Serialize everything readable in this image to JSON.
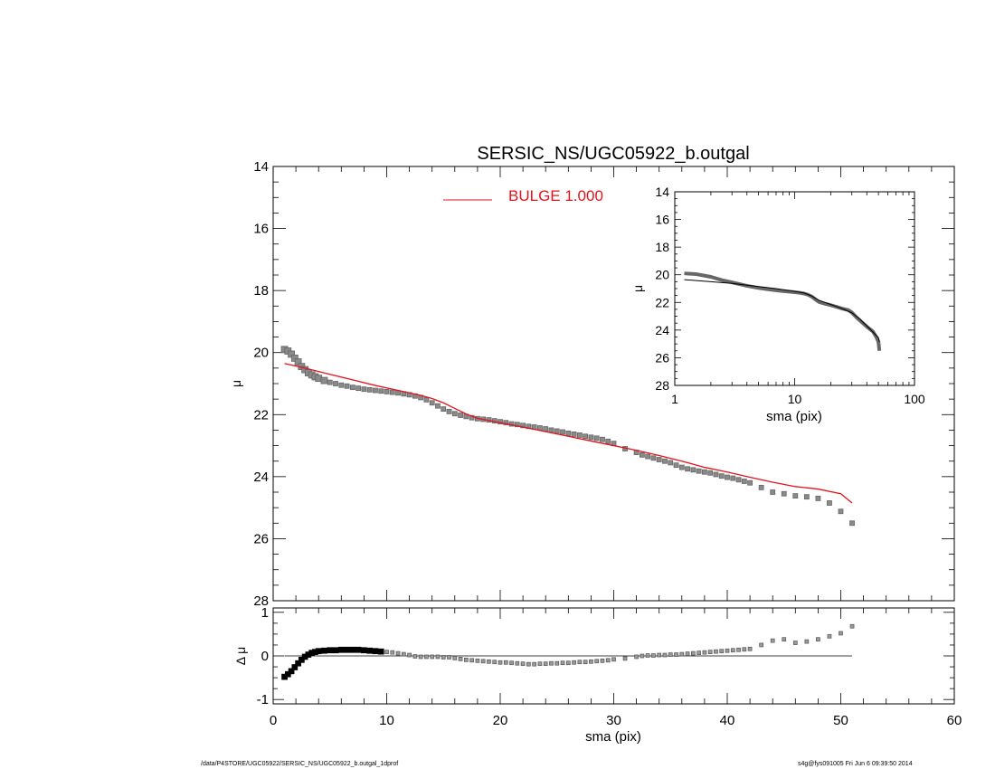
{
  "chart_data": [
    {
      "type": "scatter",
      "title": "SERSIC_NS/UGC05922_b.outgal",
      "xlabel": "",
      "ylabel": "μ",
      "xlim": [
        0,
        60
      ],
      "ylim": [
        28,
        14
      ],
      "yticks": [
        "14",
        "16",
        "18",
        "20",
        "22",
        "24",
        "26",
        "28"
      ],
      "legend_position": "top-center",
      "legend": [
        {
          "label": "BULGE  1.000",
          "color": "#e0141e"
        }
      ],
      "series": [
        {
          "style": "markers",
          "color": "#666666",
          "x": [
            1.0,
            1.3,
            1.6,
            1.9,
            2.2,
            2.5,
            2.8,
            3.1,
            3.4,
            3.7,
            4.0,
            4.5,
            5.0,
            5.5,
            6.0,
            6.5,
            7.0,
            7.5,
            8.0,
            8.5,
            9.0,
            9.5,
            10.0,
            10.5,
            11.0,
            11.5,
            12.0,
            12.5,
            13.0,
            13.5,
            14.0,
            14.5,
            15.0,
            15.5,
            16.0,
            16.5,
            17.0,
            17.5,
            18.0,
            18.5,
            19.0,
            19.5,
            20.0,
            20.5,
            21.0,
            21.5,
            22.0,
            22.5,
            23.0,
            23.5,
            24.0,
            24.5,
            25.0,
            25.5,
            26.0,
            26.5,
            27.0,
            27.5,
            28.0,
            28.5,
            29.0,
            29.5,
            30.0,
            31.0,
            32.0,
            32.5,
            33.0,
            33.5,
            34.0,
            34.5,
            35.0,
            35.5,
            36.0,
            36.5,
            37.0,
            37.5,
            38.0,
            38.5,
            39.0,
            39.5,
            40.0,
            40.5,
            41.0,
            41.5,
            42.0,
            43.0,
            44.0,
            45.0,
            46.0,
            47.0,
            48.0,
            49.0,
            50.0,
            51.0
          ],
          "y": [
            19.9,
            19.95,
            20.05,
            20.18,
            20.3,
            20.45,
            20.55,
            20.65,
            20.72,
            20.78,
            20.83,
            20.9,
            20.96,
            21.0,
            21.05,
            21.08,
            21.12,
            21.15,
            21.18,
            21.2,
            21.22,
            21.24,
            21.26,
            21.28,
            21.3,
            21.33,
            21.36,
            21.4,
            21.45,
            21.52,
            21.62,
            21.72,
            21.82,
            21.9,
            21.97,
            22.02,
            22.06,
            22.1,
            22.13,
            22.15,
            22.17,
            22.2,
            22.23,
            22.26,
            22.3,
            22.32,
            22.35,
            22.38,
            22.4,
            22.43,
            22.46,
            22.5,
            22.53,
            22.56,
            22.6,
            22.63,
            22.66,
            22.7,
            22.73,
            22.76,
            22.8,
            22.86,
            22.93,
            23.1,
            23.22,
            23.3,
            23.35,
            23.4,
            23.45,
            23.5,
            23.55,
            23.63,
            23.7,
            23.75,
            23.78,
            23.82,
            23.85,
            23.88,
            23.93,
            23.98,
            24.02,
            24.05,
            24.1,
            24.15,
            24.2,
            24.35,
            24.5,
            24.55,
            24.62,
            24.65,
            24.7,
            24.85,
            25.12,
            25.5
          ]
        },
        {
          "name": "BULGE  1.000",
          "style": "line",
          "color": "#e0141e",
          "x": [
            1,
            3,
            5,
            7,
            9,
            11,
            12,
            13,
            14,
            15,
            16,
            17,
            18,
            20,
            22,
            24,
            26,
            28,
            30,
            32,
            34,
            36,
            38,
            40,
            42,
            44,
            46,
            47,
            48,
            50,
            51
          ],
          "y": [
            20.35,
            20.52,
            20.7,
            20.88,
            21.06,
            21.22,
            21.3,
            21.38,
            21.48,
            21.62,
            21.8,
            21.98,
            22.12,
            22.26,
            22.4,
            22.55,
            22.7,
            22.85,
            23.0,
            23.15,
            23.32,
            23.5,
            23.7,
            23.85,
            24.02,
            24.18,
            24.32,
            24.36,
            24.4,
            24.55,
            24.85
          ]
        }
      ]
    },
    {
      "type": "line",
      "title": "",
      "xlabel": "sma (pix)",
      "ylabel": "μ",
      "xscale": "log",
      "xlim": [
        1,
        100
      ],
      "ylim": [
        28,
        14
      ],
      "xticks": [
        "1",
        "10",
        "100"
      ],
      "yticks": [
        "14",
        "16",
        "18",
        "20",
        "22",
        "24",
        "26",
        "28"
      ],
      "series": [
        {
          "style": "thick-line",
          "color": "#666666",
          "x": [
            1.2,
            1.5,
            2,
            2.5,
            3,
            4,
            5,
            6,
            7,
            8,
            9,
            10,
            11,
            12,
            13,
            14,
            15,
            16,
            18,
            20,
            22,
            25,
            28,
            30,
            33,
            36,
            40,
            45,
            48,
            50,
            51
          ],
          "y": [
            19.9,
            19.95,
            20.15,
            20.4,
            20.55,
            20.8,
            20.95,
            21.05,
            21.12,
            21.18,
            21.22,
            21.26,
            21.3,
            21.36,
            21.45,
            21.6,
            21.8,
            21.97,
            22.1,
            22.2,
            22.3,
            22.45,
            22.55,
            22.73,
            23.1,
            23.4,
            23.75,
            24.1,
            24.5,
            24.85,
            25.5
          ]
        },
        {
          "style": "line",
          "color": "#000000",
          "x": [
            1.2,
            2,
            3,
            5,
            7,
            10,
            12,
            14,
            16,
            20,
            25,
            30,
            35,
            40,
            45,
            50,
            51
          ],
          "y": [
            20.35,
            20.5,
            20.62,
            20.85,
            21.0,
            21.2,
            21.32,
            21.55,
            21.85,
            22.15,
            22.45,
            22.75,
            23.2,
            23.7,
            24.15,
            24.55,
            24.85
          ]
        }
      ]
    },
    {
      "type": "scatter",
      "title": "",
      "xlabel": "sma (pix)",
      "ylabel": "Δ μ",
      "xlim": [
        0,
        60
      ],
      "ylim": [
        -1.1,
        1.1
      ],
      "xticks": [
        "0",
        "10",
        "20",
        "30",
        "40",
        "50",
        "60"
      ],
      "yticks": [
        "1",
        "0",
        "-1"
      ],
      "series": [
        {
          "style": "markers",
          "color": "#000000",
          "x": [
            1.0,
            1.3,
            1.6,
            1.9,
            2.2,
            2.5,
            2.8,
            3.1,
            3.4,
            3.7,
            4.0,
            4.5,
            5.0,
            5.5,
            6.0,
            6.5,
            7.0,
            7.5,
            8.0,
            8.5,
            9.0,
            9.5,
            10.0,
            10.5,
            11.0,
            11.5,
            12.0,
            12.5,
            13.0,
            13.5,
            14.0,
            14.5,
            15.0,
            15.5,
            16.0,
            16.5,
            17.0,
            17.5,
            18.0,
            18.5,
            19.0,
            19.5,
            20.0,
            20.5,
            21.0,
            21.5,
            22.0,
            22.5,
            23.0,
            23.5,
            24.0,
            24.5,
            25.0,
            25.5,
            26.0,
            26.5,
            27.0,
            27.5,
            28.0,
            28.5,
            29.0,
            29.5,
            30.0,
            31.0,
            32.0,
            32.5,
            33.0,
            33.5,
            34.0,
            34.5,
            35.0,
            35.5,
            36.0,
            36.5,
            37.0,
            37.5,
            38.0,
            38.5,
            39.0,
            39.5,
            40.0,
            40.5,
            41.0,
            41.5,
            42.0,
            43.0,
            44.0,
            45.0,
            46.0,
            47.0,
            48.0,
            49.0,
            50.0,
            51.0
          ],
          "y": [
            -0.48,
            -0.42,
            -0.35,
            -0.26,
            -0.17,
            -0.09,
            -0.02,
            0.03,
            0.07,
            0.09,
            0.11,
            0.12,
            0.13,
            0.13,
            0.14,
            0.14,
            0.14,
            0.14,
            0.13,
            0.12,
            0.11,
            0.1,
            0.09,
            0.08,
            0.06,
            0.04,
            0.02,
            -0.01,
            -0.02,
            -0.02,
            -0.02,
            -0.02,
            -0.03,
            -0.03,
            -0.05,
            -0.07,
            -0.09,
            -0.1,
            -0.11,
            -0.12,
            -0.13,
            -0.14,
            -0.15,
            -0.15,
            -0.16,
            -0.17,
            -0.18,
            -0.19,
            -0.19,
            -0.18,
            -0.18,
            -0.17,
            -0.17,
            -0.16,
            -0.16,
            -0.15,
            -0.14,
            -0.14,
            -0.13,
            -0.12,
            -0.11,
            -0.1,
            -0.08,
            -0.06,
            -0.02,
            0.0,
            0.01,
            0.01,
            0.02,
            0.02,
            0.03,
            0.03,
            0.04,
            0.05,
            0.06,
            0.07,
            0.08,
            0.09,
            0.1,
            0.11,
            0.12,
            0.13,
            0.14,
            0.15,
            0.16,
            0.25,
            0.35,
            0.38,
            0.3,
            0.33,
            0.38,
            0.45,
            0.52,
            0.68
          ]
        }
      ]
    }
  ],
  "footer": {
    "left": "/data/P4STORE/UGC05922/SERSIC_NS/UGC05922_b.outgal_1dprof",
    "right": "s4g@fys091005  Fri Jun  6 09:39:50 2014"
  }
}
